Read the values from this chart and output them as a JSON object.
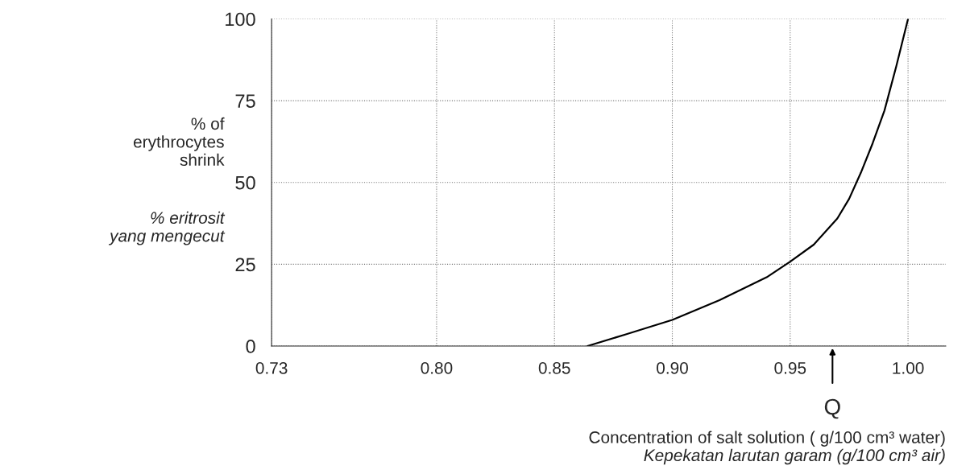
{
  "chart_data": {
    "type": "line",
    "xlabel": "Concentration of salt solution ( g/100 cm³ water)",
    "ylabel": "% of\nerythrocytes\nshrink",
    "annotations": [
      "Kepekatan larutan garam (g/100 cm³ air)",
      "% eritrosit\nyang mengecut",
      "Q"
    ],
    "series": [
      {
        "color": "#000000",
        "x": [
          0.864,
          0.88,
          0.9,
          0.92,
          0.94,
          0.95,
          0.96,
          0.97,
          0.975,
          0.98,
          0.985,
          0.99,
          0.995,
          1.0
        ],
        "values": [
          0,
          3.5,
          8,
          14,
          21,
          25.8,
          31,
          39,
          45,
          53,
          62,
          72,
          85.5,
          100
        ]
      }
    ],
    "xlim": [
      0.73,
      1.016
    ],
    "xticks": [
      0.73,
      {
        "value": 0.8,
        "label": "0.80"
      },
      0.85,
      {
        "value": 0.9,
        "label": "0.90"
      },
      0.95,
      {
        "value": 1.0,
        "label": "1.00"
      }
    ],
    "ylim": [
      0,
      100
    ],
    "yticks": [
      0,
      25,
      50,
      75,
      100
    ],
    "grid": true,
    "line_style": "solid",
    "marker": "none"
  }
}
